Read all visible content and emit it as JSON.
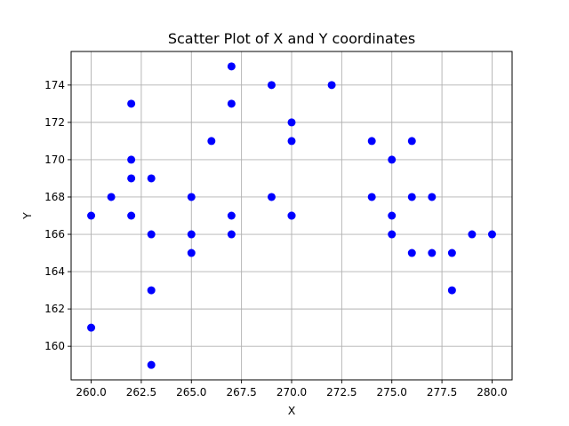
{
  "chart_data": {
    "type": "scatter",
    "title": "Scatter Plot of X and Y coordinates",
    "xlabel": "X",
    "ylabel": "Y",
    "xlim": [
      259.0,
      281.0
    ],
    "ylim": [
      158.2,
      175.8
    ],
    "x_ticks": [
      260.0,
      262.5,
      265.0,
      267.5,
      270.0,
      272.5,
      275.0,
      277.5,
      280.0
    ],
    "x_tick_labels": [
      "260.0",
      "262.5",
      "265.0",
      "267.5",
      "270.0",
      "272.5",
      "275.0",
      "277.5",
      "280.0"
    ],
    "y_ticks": [
      160,
      162,
      164,
      166,
      168,
      170,
      172,
      174
    ],
    "y_tick_labels": [
      "160",
      "162",
      "164",
      "166",
      "168",
      "170",
      "172",
      "174"
    ],
    "grid": true,
    "marker_color": "#0000ff",
    "series": [
      {
        "x": [
          260,
          260,
          261,
          262,
          262,
          262,
          262,
          263,
          263,
          263,
          263,
          265,
          265,
          265,
          266,
          267,
          267,
          267,
          267,
          269,
          269,
          270,
          270,
          270,
          270,
          272,
          274,
          274,
          275,
          275,
          275,
          276,
          276,
          276,
          277,
          277,
          278,
          278,
          279,
          280
        ],
        "y": [
          167,
          161,
          168,
          173,
          170,
          169,
          167,
          169,
          166,
          163,
          159,
          168,
          166,
          165,
          171,
          175,
          173,
          167,
          166,
          174,
          168,
          172,
          171,
          167,
          167,
          174,
          171,
          168,
          170,
          167,
          166,
          171,
          168,
          165,
          168,
          165,
          165,
          163,
          166,
          166
        ]
      }
    ]
  }
}
